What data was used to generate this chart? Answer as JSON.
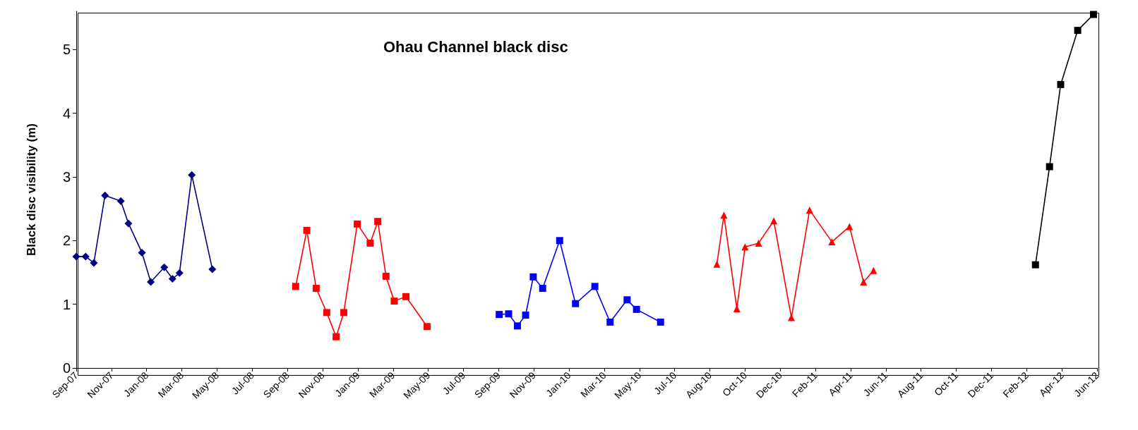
{
  "chart_data": {
    "type": "line",
    "title": "Ohau Channel black disc",
    "ylabel": "Black disc visibility (m)",
    "ylim": [
      0,
      5.6
    ],
    "yticks": [
      0,
      1,
      2,
      3,
      4,
      5
    ],
    "grid": false,
    "line_style": "solid",
    "xlim": [
      "2007-09-15",
      "2012-06-20"
    ],
    "xticks": [
      {
        "value": "2007-09-15",
        "label": "Sep-07"
      },
      {
        "value": "2007-11-14",
        "label": "Nov-07"
      },
      {
        "value": "2008-01-13",
        "label": "Jan-08"
      },
      {
        "value": "2008-03-13",
        "label": "Mar-08"
      },
      {
        "value": "2008-05-12",
        "label": "May-08"
      },
      {
        "value": "2008-07-11",
        "label": "Jul-08"
      },
      {
        "value": "2008-09-09",
        "label": "Sep-08"
      },
      {
        "value": "2008-11-08",
        "label": "Nov-08"
      },
      {
        "value": "2009-01-07",
        "label": "Jan-09"
      },
      {
        "value": "2009-03-08",
        "label": "Mar-09"
      },
      {
        "value": "2009-05-07",
        "label": "May-09"
      },
      {
        "value": "2009-07-06",
        "label": "Jul-09"
      },
      {
        "value": "2009-09-04",
        "label": "Sep-09"
      },
      {
        "value": "2009-11-03",
        "label": "Nov-09"
      },
      {
        "value": "2010-01-02",
        "label": "Jan-10"
      },
      {
        "value": "2010-03-03",
        "label": "Mar-10"
      },
      {
        "value": "2010-05-02",
        "label": "May-10"
      },
      {
        "value": "2010-07-01",
        "label": "Jul-10"
      },
      {
        "value": "2010-08-30",
        "label": "Aug-10"
      },
      {
        "value": "2010-10-29",
        "label": "Oct-10"
      },
      {
        "value": "2010-12-28",
        "label": "Dec-10"
      },
      {
        "value": "2011-02-26",
        "label": "Feb-11"
      },
      {
        "value": "2011-04-27",
        "label": "Apr-11"
      },
      {
        "value": "2011-06-26",
        "label": "Jun-11"
      },
      {
        "value": "2011-08-25",
        "label": "Aug-11"
      },
      {
        "value": "2011-10-24",
        "label": "Oct-11"
      },
      {
        "value": "2011-12-23",
        "label": "Dec-11"
      },
      {
        "value": "2012-02-21",
        "label": "Feb-12"
      },
      {
        "value": "2012-04-21",
        "label": "Apr-12"
      },
      {
        "value": "2012-06-20",
        "label": "Jun-12"
      }
    ],
    "series": [
      {
        "color": "#000080",
        "marker": "diamond",
        "x": [
          "2007-09-15",
          "2007-10-01",
          "2007-10-15",
          "2007-11-03",
          "2007-11-30",
          "2007-12-13",
          "2008-01-05",
          "2008-01-20",
          "2008-02-12",
          "2008-02-26",
          "2008-03-09",
          "2008-03-30",
          "2008-05-04"
        ],
        "values": [
          1.75,
          1.75,
          1.65,
          2.71,
          2.62,
          2.27,
          1.81,
          1.35,
          1.58,
          1.4,
          1.49,
          3.03,
          1.55
        ]
      },
      {
        "color": "#ff0000",
        "marker": "square",
        "x": [
          "2008-09-23",
          "2008-10-12",
          "2008-10-28",
          "2008-11-15",
          "2008-12-01",
          "2008-12-14",
          "2009-01-06",
          "2009-01-28",
          "2009-02-10",
          "2009-02-24",
          "2009-03-10",
          "2009-03-30",
          "2009-05-05"
        ],
        "values": [
          1.28,
          2.16,
          1.25,
          0.87,
          0.49,
          0.87,
          2.26,
          1.96,
          2.3,
          1.44,
          1.05,
          1.12,
          0.65
        ]
      },
      {
        "color": "#0000ff",
        "marker": "square",
        "x": [
          "2009-09-05",
          "2009-09-21",
          "2009-10-06",
          "2009-10-20",
          "2009-11-02",
          "2009-11-18",
          "2009-12-17",
          "2010-01-13",
          "2010-02-15",
          "2010-03-13",
          "2010-04-11",
          "2010-04-27",
          "2010-06-07"
        ],
        "values": [
          0.84,
          0.85,
          0.66,
          0.83,
          1.43,
          1.25,
          2.0,
          1.01,
          1.28,
          0.72,
          1.07,
          0.92,
          0.72
        ]
      },
      {
        "color": "#ff0000",
        "marker": "triangle",
        "x": [
          "2010-09-11",
          "2010-09-23",
          "2010-10-15",
          "2010-10-29",
          "2010-11-21",
          "2010-12-17",
          "2011-01-16",
          "2011-02-16",
          "2011-03-26",
          "2011-04-25",
          "2011-05-19",
          "2011-06-05"
        ],
        "values": [
          1.63,
          2.4,
          0.93,
          1.9,
          1.96,
          2.31,
          0.79,
          2.48,
          1.98,
          2.22,
          1.35,
          1.53
        ]
      },
      {
        "color": "#000000",
        "marker": "square",
        "x": [
          "2012-03-07",
          "2012-03-31",
          "2012-04-19",
          "2012-05-18",
          "2012-06-14"
        ],
        "values": [
          1.62,
          3.16,
          4.45,
          5.3,
          5.55
        ]
      }
    ]
  }
}
